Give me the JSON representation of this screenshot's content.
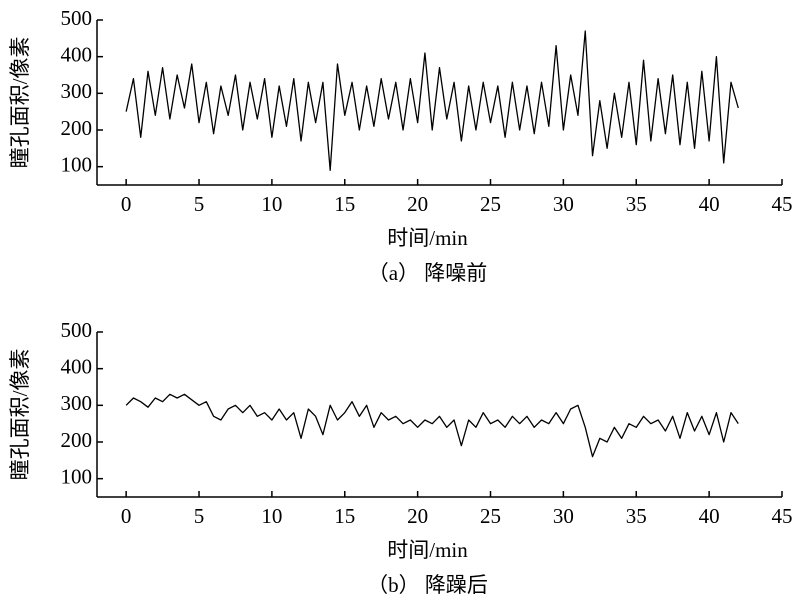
{
  "chart_data": [
    {
      "type": "line",
      "caption": "（a） 降噪前",
      "xlabel": "时间/min",
      "ylabel": "瞳孔面积/像素",
      "xlim": [
        -2,
        45
      ],
      "ylim": [
        50,
        500
      ],
      "xticks": [
        0,
        5,
        10,
        15,
        20,
        25,
        30,
        35,
        40,
        45
      ],
      "yticks": [
        100,
        200,
        300,
        400,
        500
      ],
      "x": [
        0,
        0.5,
        1,
        1.5,
        2,
        2.5,
        3,
        3.5,
        4,
        4.5,
        5,
        5.5,
        6,
        6.5,
        7,
        7.5,
        8,
        8.5,
        9,
        9.5,
        10,
        10.5,
        11,
        11.5,
        12,
        12.5,
        13,
        13.5,
        14,
        14.5,
        15,
        15.5,
        16,
        16.5,
        17,
        17.5,
        18,
        18.5,
        19,
        19.5,
        20,
        20.5,
        21,
        21.5,
        22,
        22.5,
        23,
        23.5,
        24,
        24.5,
        25,
        25.5,
        26,
        26.5,
        27,
        27.5,
        28,
        28.5,
        29,
        29.5,
        30,
        30.5,
        31,
        31.5,
        32,
        32.5,
        33,
        33.5,
        34,
        34.5,
        35,
        35.5,
        36,
        36.5,
        37,
        37.5,
        38,
        38.5,
        39,
        39.5,
        40,
        40.5,
        41,
        41.5,
        42
      ],
      "series": [
        {
          "color": "#000000",
          "values": [
            250,
            340,
            180,
            360,
            240,
            370,
            230,
            350,
            260,
            380,
            220,
            330,
            190,
            320,
            240,
            350,
            200,
            330,
            230,
            340,
            180,
            320,
            210,
            340,
            170,
            330,
            220,
            330,
            90,
            380,
            240,
            330,
            200,
            320,
            210,
            340,
            230,
            330,
            200,
            340,
            220,
            410,
            200,
            370,
            230,
            330,
            170,
            320,
            200,
            330,
            220,
            320,
            180,
            330,
            200,
            320,
            190,
            330,
            210,
            430,
            200,
            350,
            240,
            470,
            130,
            280,
            150,
            300,
            180,
            330,
            160,
            390,
            170,
            340,
            190,
            350,
            160,
            330,
            150,
            360,
            170,
            400,
            110,
            330,
            260
          ]
        }
      ]
    },
    {
      "type": "line",
      "caption": "（b） 降躁后",
      "xlabel": "时间/min",
      "ylabel": "瞳孔面积/像素",
      "xlim": [
        -2,
        45
      ],
      "ylim": [
        50,
        500
      ],
      "xticks": [
        0,
        5,
        10,
        15,
        20,
        25,
        30,
        35,
        40,
        45
      ],
      "yticks": [
        100,
        200,
        300,
        400,
        500
      ],
      "x": [
        0,
        0.5,
        1,
        1.5,
        2,
        2.5,
        3,
        3.5,
        4,
        4.5,
        5,
        5.5,
        6,
        6.5,
        7,
        7.5,
        8,
        8.5,
        9,
        9.5,
        10,
        10.5,
        11,
        11.5,
        12,
        12.5,
        13,
        13.5,
        14,
        14.5,
        15,
        15.5,
        16,
        16.5,
        17,
        17.5,
        18,
        18.5,
        19,
        19.5,
        20,
        20.5,
        21,
        21.5,
        22,
        22.5,
        23,
        23.5,
        24,
        24.5,
        25,
        25.5,
        26,
        26.5,
        27,
        27.5,
        28,
        28.5,
        29,
        29.5,
        30,
        30.5,
        31,
        31.5,
        32,
        32.5,
        33,
        33.5,
        34,
        34.5,
        35,
        35.5,
        36,
        36.5,
        37,
        37.5,
        38,
        38.5,
        39,
        39.5,
        40,
        40.5,
        41,
        41.5,
        42
      ],
      "series": [
        {
          "color": "#000000",
          "values": [
            300,
            320,
            310,
            295,
            320,
            310,
            330,
            320,
            330,
            315,
            300,
            310,
            270,
            260,
            290,
            300,
            280,
            300,
            270,
            280,
            260,
            290,
            260,
            280,
            210,
            290,
            270,
            220,
            300,
            260,
            280,
            310,
            270,
            300,
            240,
            280,
            260,
            270,
            250,
            260,
            240,
            260,
            250,
            270,
            240,
            260,
            190,
            260,
            240,
            280,
            250,
            260,
            240,
            270,
            250,
            270,
            240,
            260,
            250,
            280,
            250,
            290,
            300,
            240,
            160,
            210,
            200,
            240,
            210,
            250,
            240,
            270,
            250,
            260,
            230,
            270,
            210,
            280,
            230,
            270,
            220,
            280,
            200,
            280,
            250
          ]
        }
      ]
    }
  ]
}
